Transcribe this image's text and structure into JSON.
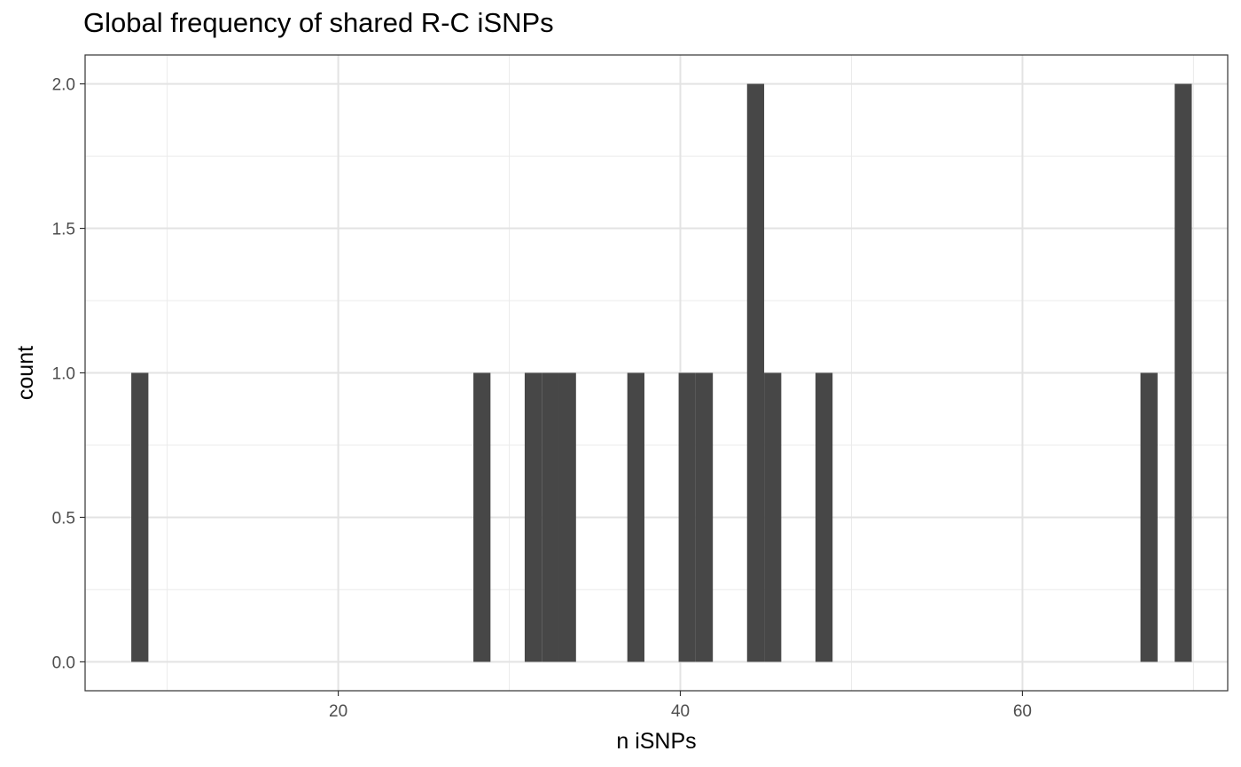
{
  "chart_data": {
    "type": "bar",
    "title": "Global frequency of shared R-C iSNPs",
    "xlabel": "n iSNPs",
    "ylabel": "count",
    "xlim": [
      5.2,
      72.0
    ],
    "ylim": [
      -0.1,
      2.1
    ],
    "xticks": [
      20,
      40,
      60
    ],
    "yticks": [
      0.0,
      0.5,
      1.0,
      1.5,
      2.0
    ],
    "ytick_labels": [
      "0.0",
      "0.5",
      "1.0",
      "1.5",
      "2.0"
    ],
    "grid": true,
    "bar_color": "#474747",
    "bins": [
      {
        "x0": 7.9,
        "x1": 8.9,
        "count": 1
      },
      {
        "x0": 27.9,
        "x1": 28.9,
        "count": 1
      },
      {
        "x0": 30.9,
        "x1": 31.9,
        "count": 1
      },
      {
        "x0": 31.9,
        "x1": 32.9,
        "count": 1
      },
      {
        "x0": 32.9,
        "x1": 33.9,
        "count": 1
      },
      {
        "x0": 36.9,
        "x1": 37.9,
        "count": 1
      },
      {
        "x0": 39.9,
        "x1": 40.9,
        "count": 1
      },
      {
        "x0": 40.9,
        "x1": 41.9,
        "count": 1
      },
      {
        "x0": 43.9,
        "x1": 44.9,
        "count": 2
      },
      {
        "x0": 44.9,
        "x1": 45.9,
        "count": 1
      },
      {
        "x0": 47.9,
        "x1": 48.9,
        "count": 1
      },
      {
        "x0": 66.9,
        "x1": 67.9,
        "count": 1
      },
      {
        "x0": 68.9,
        "x1": 69.9,
        "count": 2
      }
    ]
  }
}
